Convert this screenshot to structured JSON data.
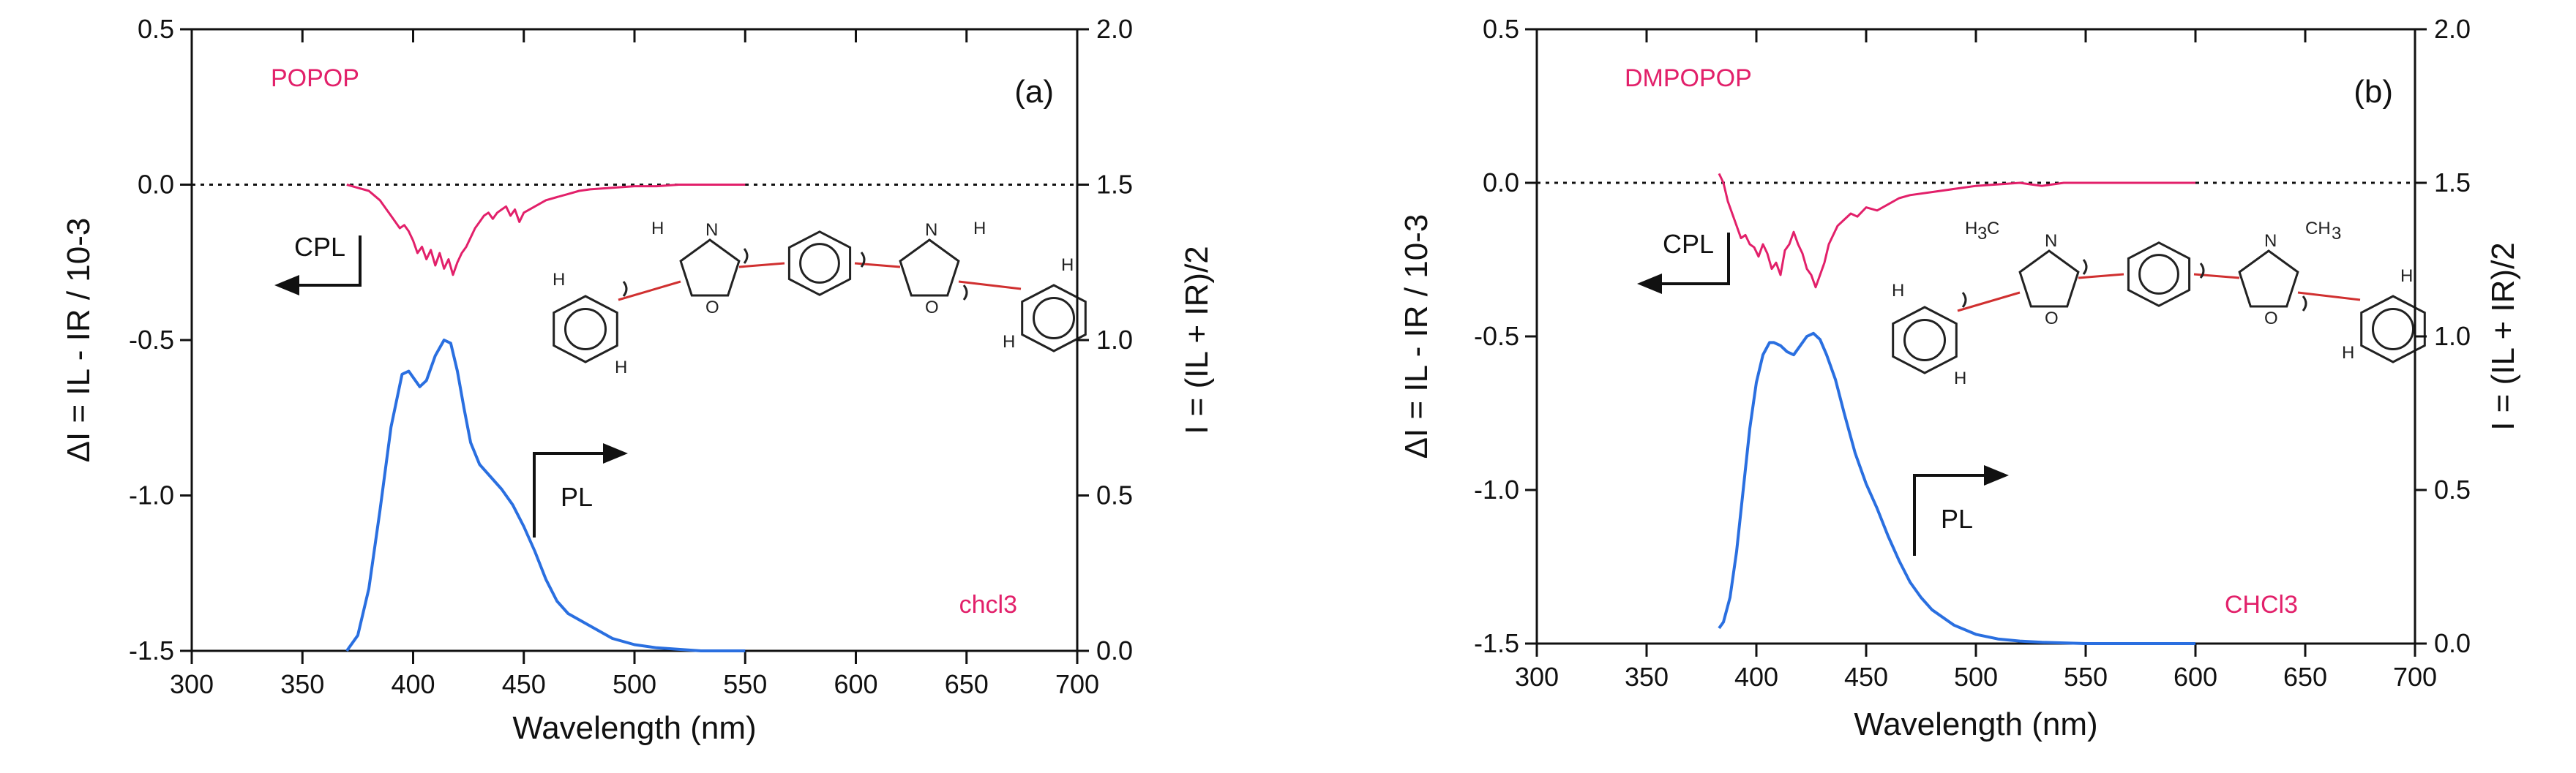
{
  "chart_data": [
    {
      "type": "line",
      "panel_label": "(a)",
      "compound_label": "POPOP",
      "solvent_label": "chcl3",
      "xlabel": "Wavelength (nm)",
      "ylabel_left": "ΔI = IL - IR / 10-3",
      "ylabel_right": "I = (IL + IR)/2",
      "xlim": [
        300,
        700
      ],
      "ylim_left": [
        -1.5,
        0.5
      ],
      "ylim_right": [
        0.0,
        2.0
      ],
      "x_ticks": [
        "300",
        "350",
        "400",
        "450",
        "500",
        "550",
        "600",
        "650",
        "700"
      ],
      "y_left_ticks": [
        "-1.5",
        "-1.0",
        "-0.5",
        "0.0",
        "0.5"
      ],
      "y_right_ticks": [
        "0.0",
        "0.5",
        "1.0",
        "1.5",
        "2.0"
      ],
      "grid": false,
      "arrows": {
        "cpl": "CPL",
        "pl": "PL"
      },
      "series": [
        {
          "name": "CPL",
          "axis": "left",
          "color": "#e2206a",
          "x": [
            370,
            375,
            380,
            385,
            388,
            390,
            392,
            394,
            396,
            398,
            400,
            402,
            404,
            406,
            408,
            410,
            412,
            414,
            416,
            418,
            420,
            422,
            424,
            426,
            428,
            430,
            432,
            434,
            436,
            438,
            440,
            442,
            444,
            446,
            448,
            450,
            455,
            460,
            465,
            470,
            475,
            480,
            490,
            500,
            510,
            520,
            530,
            540,
            550
          ],
          "y": [
            0.0,
            -0.01,
            -0.02,
            -0.05,
            -0.08,
            -0.1,
            -0.12,
            -0.14,
            -0.13,
            -0.15,
            -0.18,
            -0.22,
            -0.2,
            -0.24,
            -0.21,
            -0.26,
            -0.22,
            -0.27,
            -0.24,
            -0.29,
            -0.25,
            -0.22,
            -0.2,
            -0.17,
            -0.14,
            -0.12,
            -0.1,
            -0.09,
            -0.11,
            -0.09,
            -0.08,
            -0.07,
            -0.1,
            -0.08,
            -0.12,
            -0.09,
            -0.07,
            -0.05,
            -0.04,
            -0.03,
            -0.02,
            -0.015,
            -0.01,
            -0.005,
            -0.005,
            0.0,
            0.0,
            0.0,
            0.0
          ]
        },
        {
          "name": "PL",
          "axis": "right",
          "color": "#2a6fe0",
          "x": [
            370,
            375,
            380,
            385,
            390,
            395,
            398,
            400,
            403,
            406,
            410,
            414,
            417,
            420,
            423,
            426,
            430,
            435,
            440,
            445,
            450,
            455,
            460,
            465,
            470,
            475,
            480,
            490,
            500,
            510,
            520,
            530,
            550
          ],
          "y": [
            0.0,
            0.05,
            0.2,
            0.45,
            0.72,
            0.89,
            0.9,
            0.88,
            0.85,
            0.87,
            0.95,
            1.0,
            0.99,
            0.9,
            0.78,
            0.67,
            0.6,
            0.56,
            0.52,
            0.47,
            0.4,
            0.32,
            0.23,
            0.16,
            0.12,
            0.1,
            0.08,
            0.04,
            0.02,
            0.01,
            0.005,
            0.0,
            0.0
          ]
        }
      ]
    },
    {
      "type": "line",
      "panel_label": "(b)",
      "compound_label": "DMPOPOP",
      "solvent_label": "CHCl3",
      "xlabel": "Wavelength (nm)",
      "ylabel_left": "ΔI = IL - IR / 10-3",
      "ylabel_right": "I = (IL + IR)/2",
      "xlim": [
        300,
        700
      ],
      "ylim_left": [
        -1.5,
        0.5
      ],
      "ylim_right": [
        0.0,
        2.0
      ],
      "x_ticks": [
        "300",
        "350",
        "400",
        "450",
        "500",
        "550",
        "600",
        "650",
        "700"
      ],
      "y_left_ticks": [
        "-1.5",
        "-1.0",
        "-0.5",
        "0.0",
        "0.5"
      ],
      "y_right_ticks": [
        "0.0",
        "0.5",
        "1.0",
        "1.5",
        "2.0"
      ],
      "grid": false,
      "arrows": {
        "cpl": "CPL",
        "pl": "PL"
      },
      "series": [
        {
          "name": "CPL",
          "axis": "left",
          "color": "#e2206a",
          "x": [
            383,
            385,
            387,
            389,
            391,
            393,
            395,
            397,
            399,
            401,
            403,
            405,
            407,
            409,
            411,
            413,
            415,
            417,
            419,
            421,
            423,
            425,
            427,
            429,
            431,
            433,
            435,
            437,
            440,
            443,
            446,
            450,
            455,
            460,
            465,
            470,
            480,
            490,
            500,
            510,
            520,
            530,
            540,
            550,
            560,
            580,
            600
          ],
          "y": [
            0.03,
            0.0,
            -0.06,
            -0.1,
            -0.14,
            -0.18,
            -0.17,
            -0.2,
            -0.21,
            -0.24,
            -0.2,
            -0.23,
            -0.28,
            -0.26,
            -0.3,
            -0.22,
            -0.2,
            -0.16,
            -0.2,
            -0.23,
            -0.28,
            -0.3,
            -0.34,
            -0.3,
            -0.26,
            -0.2,
            -0.17,
            -0.14,
            -0.12,
            -0.1,
            -0.11,
            -0.08,
            -0.09,
            -0.07,
            -0.05,
            -0.04,
            -0.03,
            -0.02,
            -0.01,
            -0.005,
            0.0,
            -0.01,
            0.0,
            0.0,
            0.0,
            0.0,
            0.0
          ]
        },
        {
          "name": "PL",
          "axis": "right",
          "color": "#2a6fe0",
          "x": [
            383,
            385,
            388,
            391,
            394,
            397,
            400,
            403,
            406,
            408,
            411,
            414,
            417,
            420,
            423,
            426,
            429,
            432,
            436,
            440,
            445,
            450,
            455,
            460,
            465,
            470,
            475,
            480,
            490,
            500,
            510,
            520,
            530,
            550,
            580,
            600
          ],
          "y": [
            0.05,
            0.07,
            0.15,
            0.3,
            0.5,
            0.7,
            0.85,
            0.94,
            0.98,
            0.98,
            0.97,
            0.95,
            0.94,
            0.97,
            1.0,
            1.01,
            0.99,
            0.94,
            0.86,
            0.75,
            0.62,
            0.52,
            0.44,
            0.35,
            0.27,
            0.2,
            0.15,
            0.11,
            0.06,
            0.03,
            0.015,
            0.008,
            0.004,
            0.0,
            0.0,
            0.0
          ]
        }
      ]
    }
  ]
}
